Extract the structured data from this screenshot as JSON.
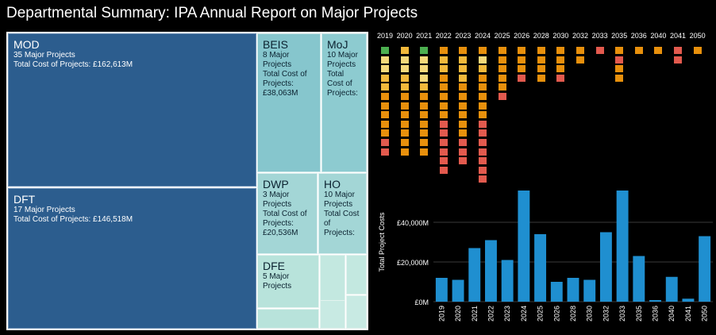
{
  "title": "Departmental Summary: IPA Annual Report on Major Projects",
  "treemap": {
    "mod": {
      "name": "MOD",
      "lines": [
        "35 Major Projects",
        "Total Cost of Projects: £162,613M"
      ]
    },
    "dft": {
      "name": "DFT",
      "lines": [
        "17 Major Projects",
        "Total Cost of Projects: £146,518M"
      ]
    },
    "beis": {
      "name": "BEIS",
      "lines": [
        "8 Major",
        "Projects",
        "Total Cost of",
        "Projects:",
        "£38,063M"
      ]
    },
    "moj": {
      "name": "MoJ",
      "lines": [
        "10 Major",
        "Projects",
        "Total",
        "Cost of",
        "Projects:"
      ]
    },
    "dwp": {
      "name": "DWP",
      "lines": [
        "3 Major",
        "Projects",
        "Total Cost of",
        "Projects:",
        "£20,536M"
      ]
    },
    "ho": {
      "name": "HO",
      "lines": [
        "10 Major",
        "Projects",
        "Total Cost",
        "of",
        "Projects:"
      ]
    },
    "dfe": {
      "name": "DFE",
      "lines": [
        "5 Major",
        "Projects"
      ]
    }
  },
  "colors": {
    "dark_blue": "#2c5d8e",
    "teal": "#86c6cd",
    "teal_light": "#a3d6d6",
    "mint": "#b8e3db",
    "bar": "#1f8fd0",
    "green": "#4caf50",
    "yellow": "#f5d97a",
    "gold": "#f2b93b",
    "orange": "#e8900c",
    "red": "#e35a4e"
  },
  "chart_data": [
    {
      "type": "heatmap",
      "title": "",
      "x": [
        "2019",
        "2020",
        "2021",
        "2022",
        "2023",
        "2024",
        "2025",
        "2026",
        "2028",
        "2030",
        "2032",
        "2033",
        "2035",
        "2036",
        "2040",
        "2041",
        "2050"
      ],
      "columns": [
        [
          "green",
          "yellow",
          "yellow",
          "gold",
          "gold",
          "orange",
          "orange",
          "orange",
          "orange",
          "orange",
          "red",
          "red"
        ],
        [
          "gold",
          "yellow",
          "yellow",
          "gold",
          "gold",
          "orange",
          "orange",
          "orange",
          "orange",
          "orange",
          "orange",
          "orange"
        ],
        [
          "green",
          "yellow",
          "yellow",
          "yellow",
          "gold",
          "orange",
          "orange",
          "orange",
          "orange",
          "orange",
          "orange",
          "orange"
        ],
        [
          "orange",
          "gold",
          "gold",
          "orange",
          "orange",
          "orange",
          "orange",
          "orange",
          "red",
          "red",
          "red",
          "red",
          "red",
          "red"
        ],
        [
          "orange",
          "gold",
          "gold",
          "gold",
          "orange",
          "orange",
          "orange",
          "orange",
          "orange",
          "orange",
          "red",
          "red",
          "red"
        ],
        [
          "orange",
          "yellow",
          "gold",
          "orange",
          "orange",
          "orange",
          "orange",
          "orange",
          "red",
          "red",
          "red",
          "red",
          "red",
          "red",
          "red"
        ],
        [
          "orange",
          "orange",
          "orange",
          "orange",
          "orange",
          "red"
        ],
        [
          "orange",
          "orange",
          "orange",
          "red"
        ],
        [
          "orange",
          "orange",
          "orange",
          "orange"
        ],
        [
          "orange",
          "orange",
          "orange",
          "red"
        ],
        [
          "orange",
          "orange"
        ],
        [
          "red"
        ],
        [
          "orange",
          "red",
          "orange",
          "orange"
        ],
        [
          "orange"
        ],
        [
          "orange"
        ],
        [
          "red",
          "red"
        ],
        [
          "orange"
        ]
      ]
    },
    {
      "type": "bar",
      "categories": [
        "2019",
        "2020",
        "2021",
        "2022",
        "2023",
        "2024",
        "2025",
        "2026",
        "2028",
        "2030",
        "2032",
        "2033",
        "2035",
        "2036",
        "2040",
        "2041",
        "2050"
      ],
      "values": [
        12000,
        11000,
        27000,
        31000,
        21000,
        56000,
        34000,
        10000,
        12000,
        11000,
        35000,
        56000,
        23000,
        800,
        12500,
        1500,
        33000
      ],
      "ylabel": "Total Project Costs",
      "xlabel": "",
      "yticks": [
        "£0M",
        "£20,000M",
        "£40,000M"
      ],
      "ytick_values": [
        0,
        20000,
        40000
      ],
      "ylim": [
        0,
        60000
      ]
    }
  ]
}
